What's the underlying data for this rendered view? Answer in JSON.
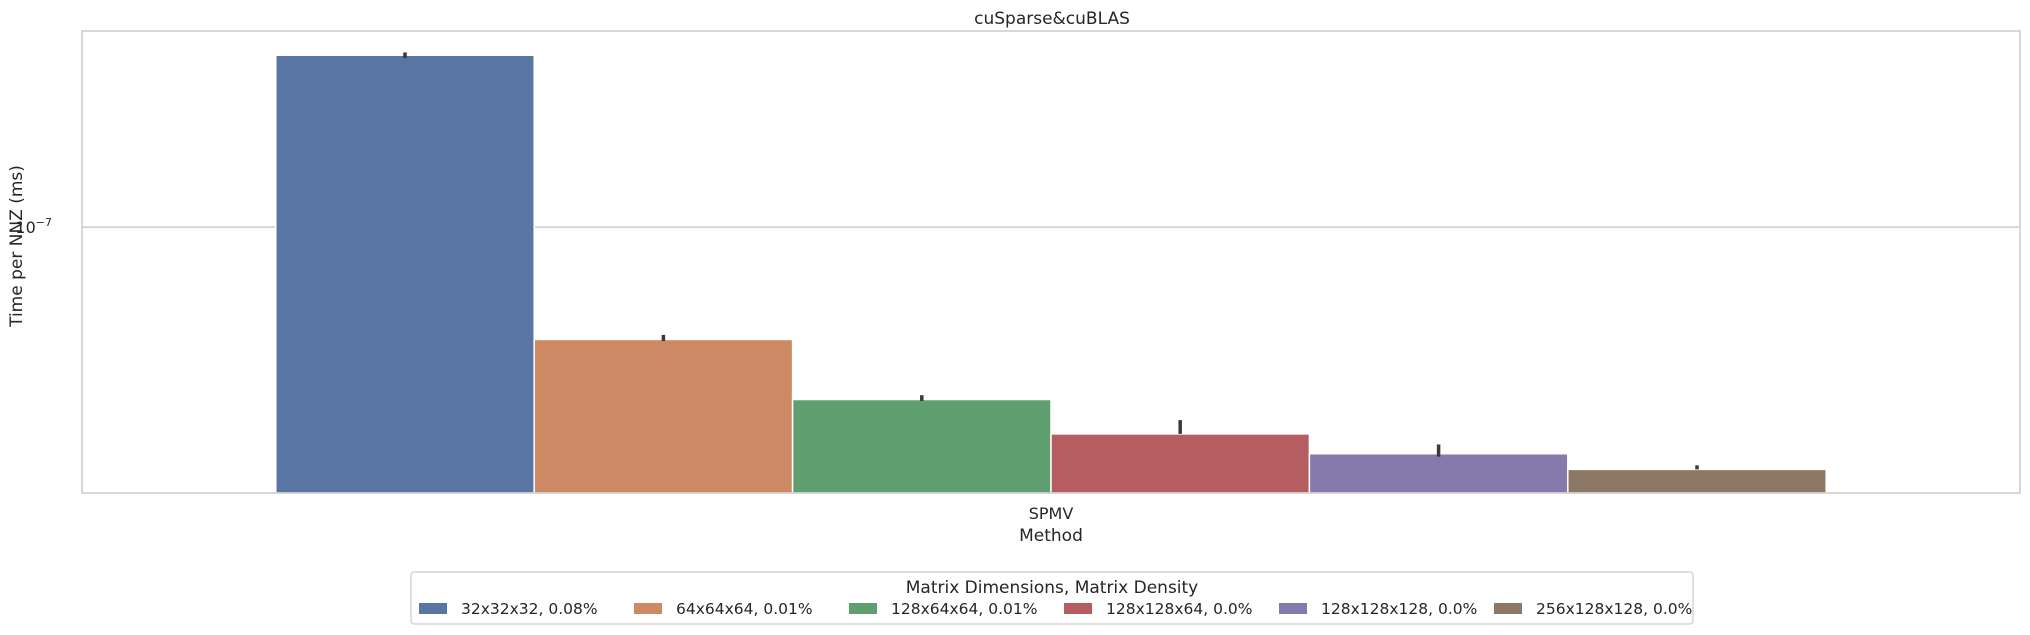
{
  "chart_data": {
    "type": "bar",
    "title": "cuSparse&cuBLAS",
    "xlabel": "Method",
    "ylabel": "Time per NNZ (ms)",
    "yscale": "log",
    "ylim": [
      1.32e-08,
      4.45e-07
    ],
    "yticks": [
      {
        "value": 1e-07,
        "base": "10",
        "exponent": "−7"
      }
    ],
    "grid": true,
    "categories": [
      "SPMV"
    ],
    "legend": {
      "title": "Matrix Dimensions, Matrix Density",
      "placement": "bottom-center",
      "columns": 6
    },
    "series": [
      {
        "name": "32x32x32, 0.08%",
        "color": "#5975a4",
        "values": [
          3.7e-07
        ],
        "err": [
          [
            3.62e-07,
            3.78e-07
          ]
        ]
      },
      {
        "name": "64x64x64, 0.01%",
        "color": "#cc8963",
        "values": [
          4.25e-08
        ],
        "err": [
          [
            4.2e-08,
            4.4e-08
          ]
        ]
      },
      {
        "name": "128x64x64, 0.01%",
        "color": "#5f9e6e",
        "values": [
          2.69e-08
        ],
        "err": [
          [
            2.66e-08,
            2.78e-08
          ]
        ]
      },
      {
        "name": "128x128x64, 0.0%",
        "color": "#b55d60",
        "values": [
          2.07e-08
        ],
        "err": [
          [
            2.07e-08,
            2.3e-08
          ]
        ]
      },
      {
        "name": "128x128x128, 0.0%",
        "color": "#857aab",
        "values": [
          1.78e-08
        ],
        "err": [
          [
            1.74e-08,
            1.91e-08
          ]
        ]
      },
      {
        "name": "256x128x128, 0.0%",
        "color": "#8d7866",
        "values": [
          1.58e-08
        ],
        "err": [
          [
            1.58e-08,
            1.63e-08
          ]
        ]
      }
    ]
  }
}
